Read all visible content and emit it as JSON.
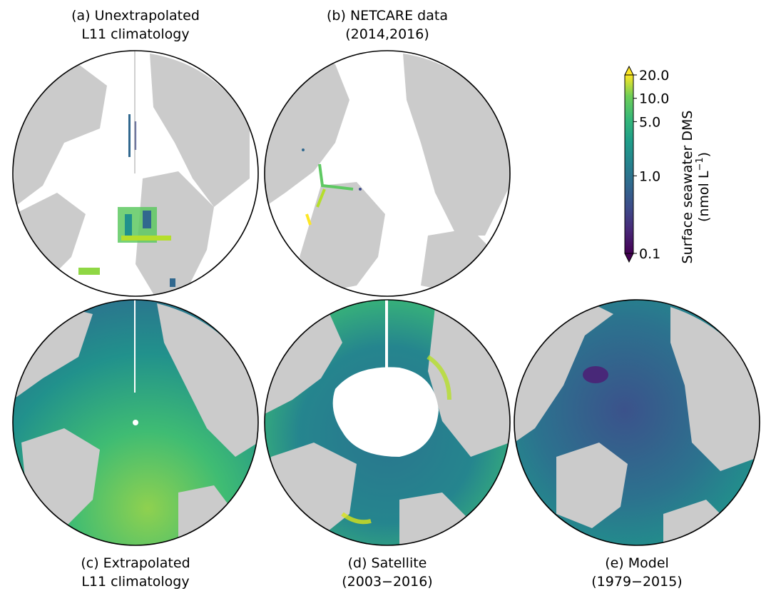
{
  "panels": [
    {
      "id": "a",
      "title_line1": "(a) Unextrapolated",
      "title_line2": "L11 climatology"
    },
    {
      "id": "b",
      "title_line1": "(b) NETCARE data",
      "title_line2": "(2014,2016)"
    },
    {
      "id": "c",
      "title_line1": "(c) Extrapolated",
      "title_line2": "L11 climatology"
    },
    {
      "id": "d",
      "title_line1": "(d) Satellite",
      "title_line2": "(2003−2016)"
    },
    {
      "id": "e",
      "title_line1": "(e) Model",
      "title_line2": "(1979−2015)"
    }
  ],
  "colorbar": {
    "label_line1": "Surface seawater DMS",
    "label_line2_prefix": "(nmol L",
    "label_line2_sup": "−1",
    "label_line2_suffix": ")",
    "ticks": [
      "20.0",
      "10.0",
      "5.0",
      "1.0",
      "0.1"
    ],
    "scale": "log",
    "range": [
      0.1,
      20.0
    ],
    "extend": "both",
    "colormap": "viridis"
  },
  "colors": {
    "land": "#cbcbcb",
    "ocean_nodata": "#ffffff",
    "viridis_low": "#440154",
    "viridis_mid": "#21918c",
    "viridis_high": "#fde725"
  }
}
